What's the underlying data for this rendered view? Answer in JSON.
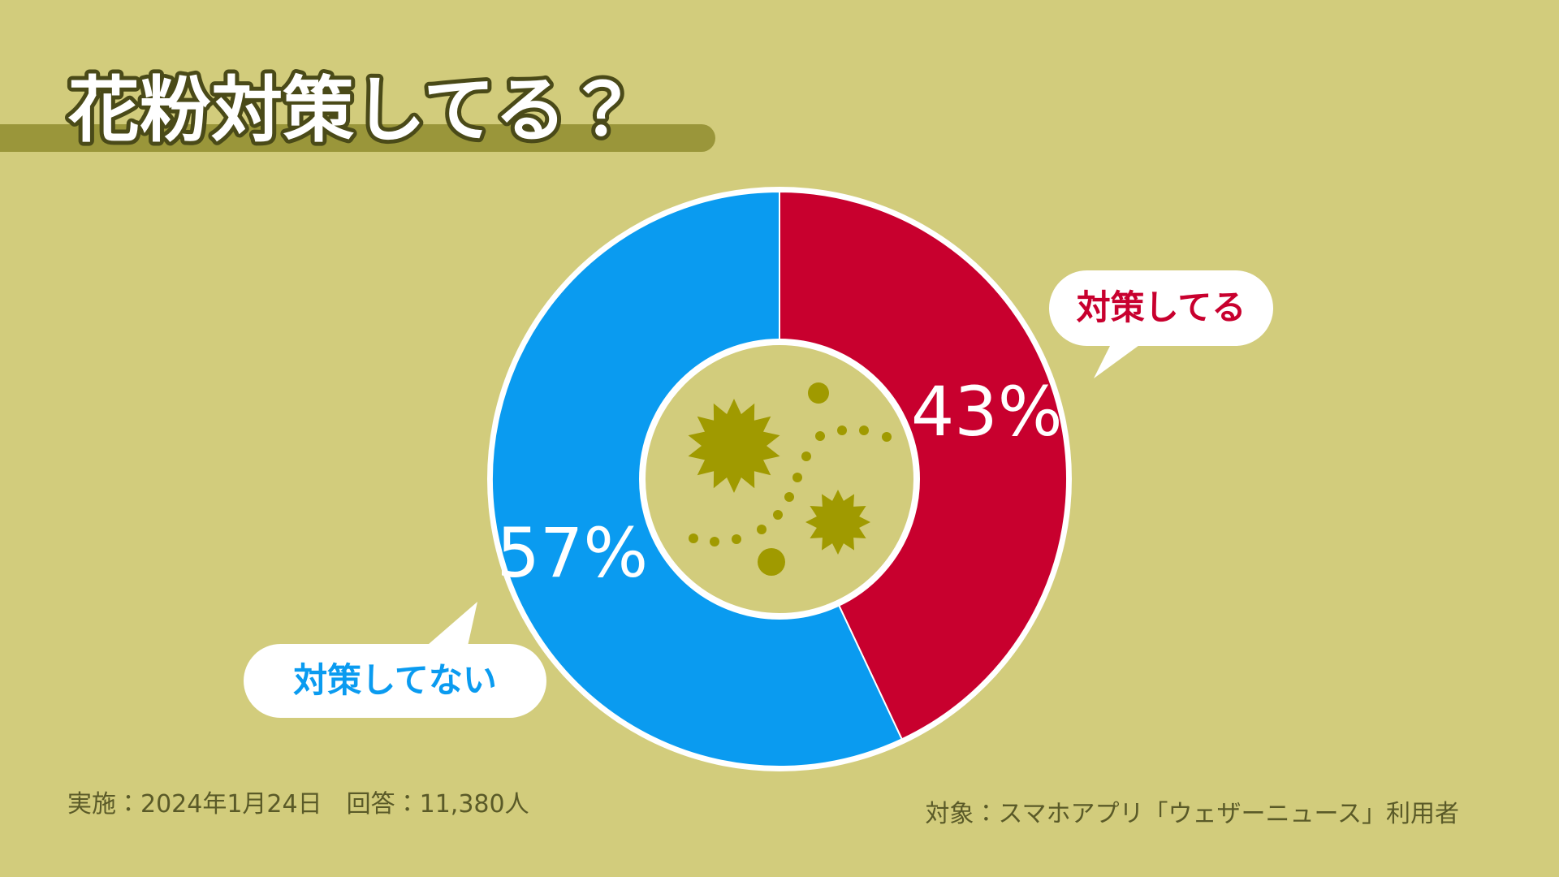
{
  "chart_data": {
    "type": "pie",
    "title": "花粉対策してる？",
    "categories": [
      "対策してる",
      "対策してない"
    ],
    "values": [
      43,
      57
    ],
    "value_labels": [
      "43%",
      "57%"
    ],
    "colors": [
      "#c8002e",
      "#0a9bf0"
    ],
    "notes": [
      "実施：2024年1月24日　回答：11,380人",
      "対象：スマホアプリ「ウェザーニュース」利用者"
    ]
  }
}
